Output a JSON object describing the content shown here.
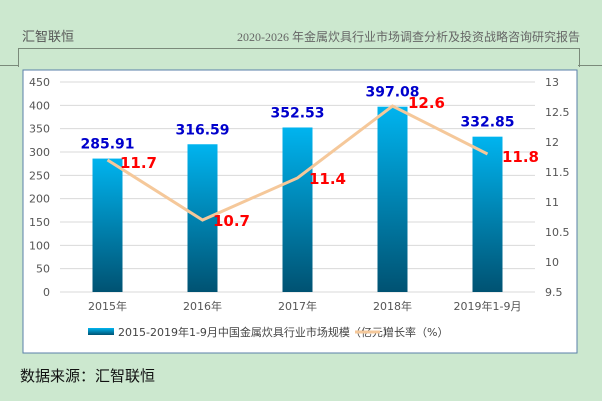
{
  "header": {
    "left": "汇智联恒",
    "right": "2020-2026 年金属炊具行业市场调查分析及投资战略咨询研究报告"
  },
  "source": "数据来源：汇智联恒",
  "chart_data": {
    "type": "bar+line",
    "categories": [
      "2015年",
      "2016年",
      "2017年",
      "2018年",
      "2019年1-9月"
    ],
    "series": [
      {
        "name": "2015-2019年1-9月中国金属炊具行业市场规模（亿元）",
        "type": "bar",
        "axis": "left",
        "values": [
          285.91,
          316.59,
          352.53,
          397.08,
          332.85
        ],
        "color": "#00a6e0",
        "label_color": "#0000cc"
      },
      {
        "name": "增长率（%）",
        "type": "line",
        "axis": "right",
        "values": [
          11.7,
          10.7,
          11.4,
          12.6,
          11.8
        ],
        "color": "#f5c89a",
        "label_color": "#ff0000"
      }
    ],
    "left_axis": {
      "ylim": [
        0,
        450
      ],
      "ticks": [
        "0",
        "50",
        "100",
        "150",
        "200",
        "250",
        "300",
        "350",
        "400",
        "450"
      ]
    },
    "right_axis": {
      "ylim": [
        9.5,
        13
      ],
      "ticks": [
        "9.5",
        "10",
        "10.5",
        "11",
        "11.5",
        "12",
        "12.5",
        "13"
      ]
    },
    "grid": true,
    "legend": "bottom"
  }
}
